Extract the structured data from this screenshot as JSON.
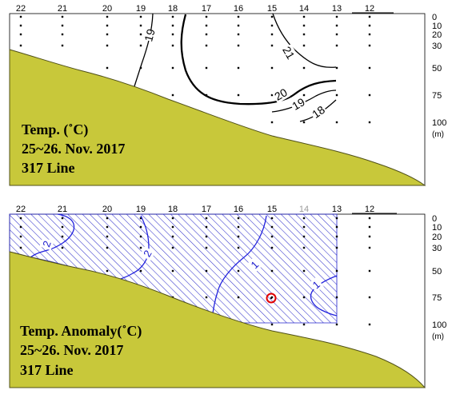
{
  "chart_data": [
    {
      "type": "contour",
      "panel": "temperature",
      "title_lines": [
        "Temp. (˚C)",
        "25~26. Nov. 2017",
        "317 Line"
      ],
      "stations": [
        "22",
        "21",
        "20",
        "19",
        "18",
        "17",
        "16",
        "15",
        "14",
        "13",
        "12"
      ],
      "depth_ticks": [
        "0",
        "10",
        "20",
        "30",
        "50",
        "75",
        "100"
      ],
      "depth_unit": "(m)",
      "contours": [
        {
          "level": "19",
          "label": "19"
        },
        {
          "level": "21",
          "label": "21"
        },
        {
          "level": "20",
          "label": "20"
        },
        {
          "level": "19",
          "label": "19"
        },
        {
          "level": "18",
          "label": "18"
        }
      ]
    },
    {
      "type": "contour",
      "panel": "anomaly",
      "title_lines": [
        "Temp. Anomaly(˚C)",
        "25~26. Nov. 2017",
        "317 Line"
      ],
      "stations": [
        "22",
        "21",
        "20",
        "19",
        "18",
        "17",
        "16",
        "15",
        "14",
        "13",
        "12"
      ],
      "depth_ticks": [
        "0",
        "10",
        "20",
        "30",
        "50",
        "75",
        "100"
      ],
      "depth_unit": "(m)",
      "shading": "negative anomaly (hatched)",
      "contours": [
        {
          "level": "-2",
          "label": "2"
        },
        {
          "level": "-2",
          "label": "2"
        },
        {
          "level": "-1",
          "label": "1"
        },
        {
          "level": "-1",
          "label": "1"
        }
      ],
      "marker": "red circle near station 15, 75 m"
    }
  ],
  "colors": {
    "seabed": "#c8c83a",
    "seabed_edge": "#505018",
    "contour_temp": "#000000",
    "contour_anomaly": "#2222dd",
    "hatch": "#3535cc",
    "marker": "#e00000"
  }
}
